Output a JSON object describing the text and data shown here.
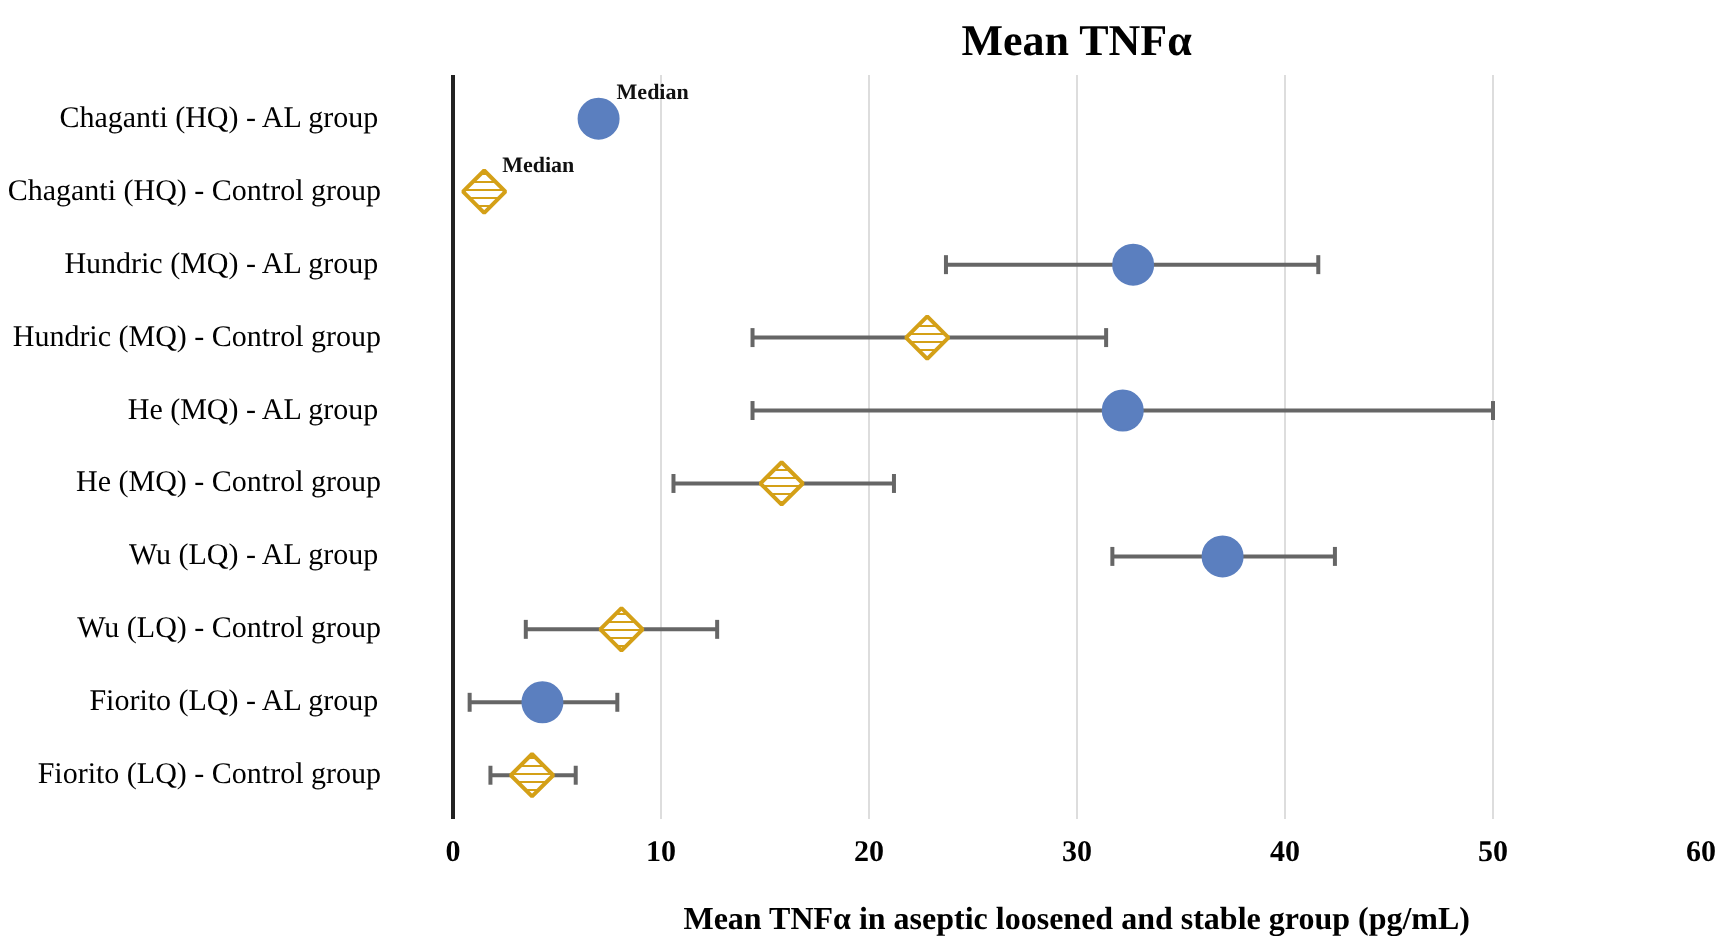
{
  "chart_data": {
    "type": "scatter",
    "title": "Mean TNFα",
    "xlabel": "Mean TNFα in aseptic loosened and stable group (pg/mL)",
    "categories": [
      "Chaganti (HQ) - AL group",
      "Chaganti (HQ) - Control group",
      "Hundric (MQ) - AL group",
      "Hundric (MQ) - Control group",
      "He (MQ) - AL group",
      "He (MQ) - Control group",
      "Wu (LQ) - AL group",
      "Wu (LQ) - Control group",
      "Fiorito (LQ) - AL group",
      "Fiorito (LQ) - Control group"
    ],
    "series": [
      {
        "color": "#5b7fbf",
        "marker": "circle",
        "values": [
          7.0,
          null,
          32.7,
          null,
          32.2,
          null,
          37.0,
          null,
          4.3,
          null
        ],
        "errors": [
          null,
          null,
          [
            23.7,
            41.6
          ],
          null,
          [
            14.4,
            50.0
          ],
          null,
          [
            31.7,
            42.4
          ],
          null,
          [
            0.8,
            7.9
          ],
          null
        ]
      },
      {
        "color": "#d4a017",
        "marker": "diamond",
        "values": [
          null,
          1.5,
          null,
          22.8,
          null,
          15.8,
          null,
          8.1,
          null,
          3.8
        ],
        "errors": [
          null,
          null,
          null,
          [
            14.4,
            31.4
          ],
          null,
          [
            10.6,
            21.2
          ],
          null,
          [
            3.5,
            12.7
          ],
          null,
          [
            1.8,
            5.9
          ]
        ]
      }
    ],
    "orientation": "horizontal",
    "annotations": [
      {
        "text": "Median",
        "x": 7.0,
        "y": "Chaganti (HQ) - AL group"
      },
      {
        "text": "Median",
        "x": 1.5,
        "y": "Chaganti (HQ) - Control group"
      }
    ],
    "xlim": [
      0,
      60
    ],
    "xticks": [
      0,
      10,
      20,
      30,
      40,
      50,
      60
    ],
    "grid": "x"
  }
}
